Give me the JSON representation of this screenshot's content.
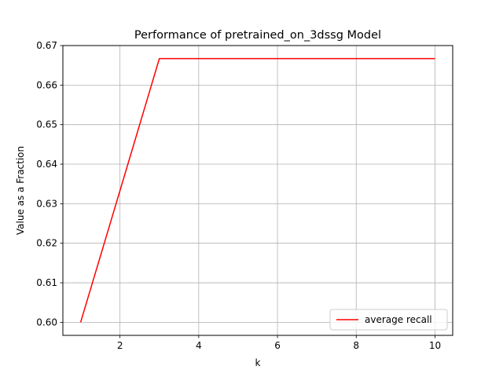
{
  "chart_data": {
    "type": "line",
    "title": "Performance of pretrained_on_3dssg Model",
    "xlabel": "k",
    "ylabel": "Value as a Fraction",
    "x": [
      1,
      2,
      3,
      4,
      5,
      6,
      7,
      8,
      9,
      10
    ],
    "series": [
      {
        "name": "average recall",
        "color": "#ff0000",
        "values": [
          0.6,
          0.6333,
          0.6667,
          0.6667,
          0.6667,
          0.6667,
          0.6667,
          0.6667,
          0.6667,
          0.6667
        ]
      }
    ],
    "xlim": [
      0.55,
      10.45
    ],
    "ylim": [
      0.5967,
      0.67
    ],
    "xticks": [
      2,
      4,
      6,
      8,
      10
    ],
    "xtick_labels": [
      "2",
      "4",
      "6",
      "8",
      "10"
    ],
    "yticks": [
      0.6,
      0.61,
      0.62,
      0.63,
      0.64,
      0.65,
      0.66,
      0.67
    ],
    "ytick_labels": [
      "0.60",
      "0.61",
      "0.62",
      "0.63",
      "0.64",
      "0.65",
      "0.66",
      "0.67"
    ],
    "grid": true,
    "legend_position": "lower-right"
  }
}
